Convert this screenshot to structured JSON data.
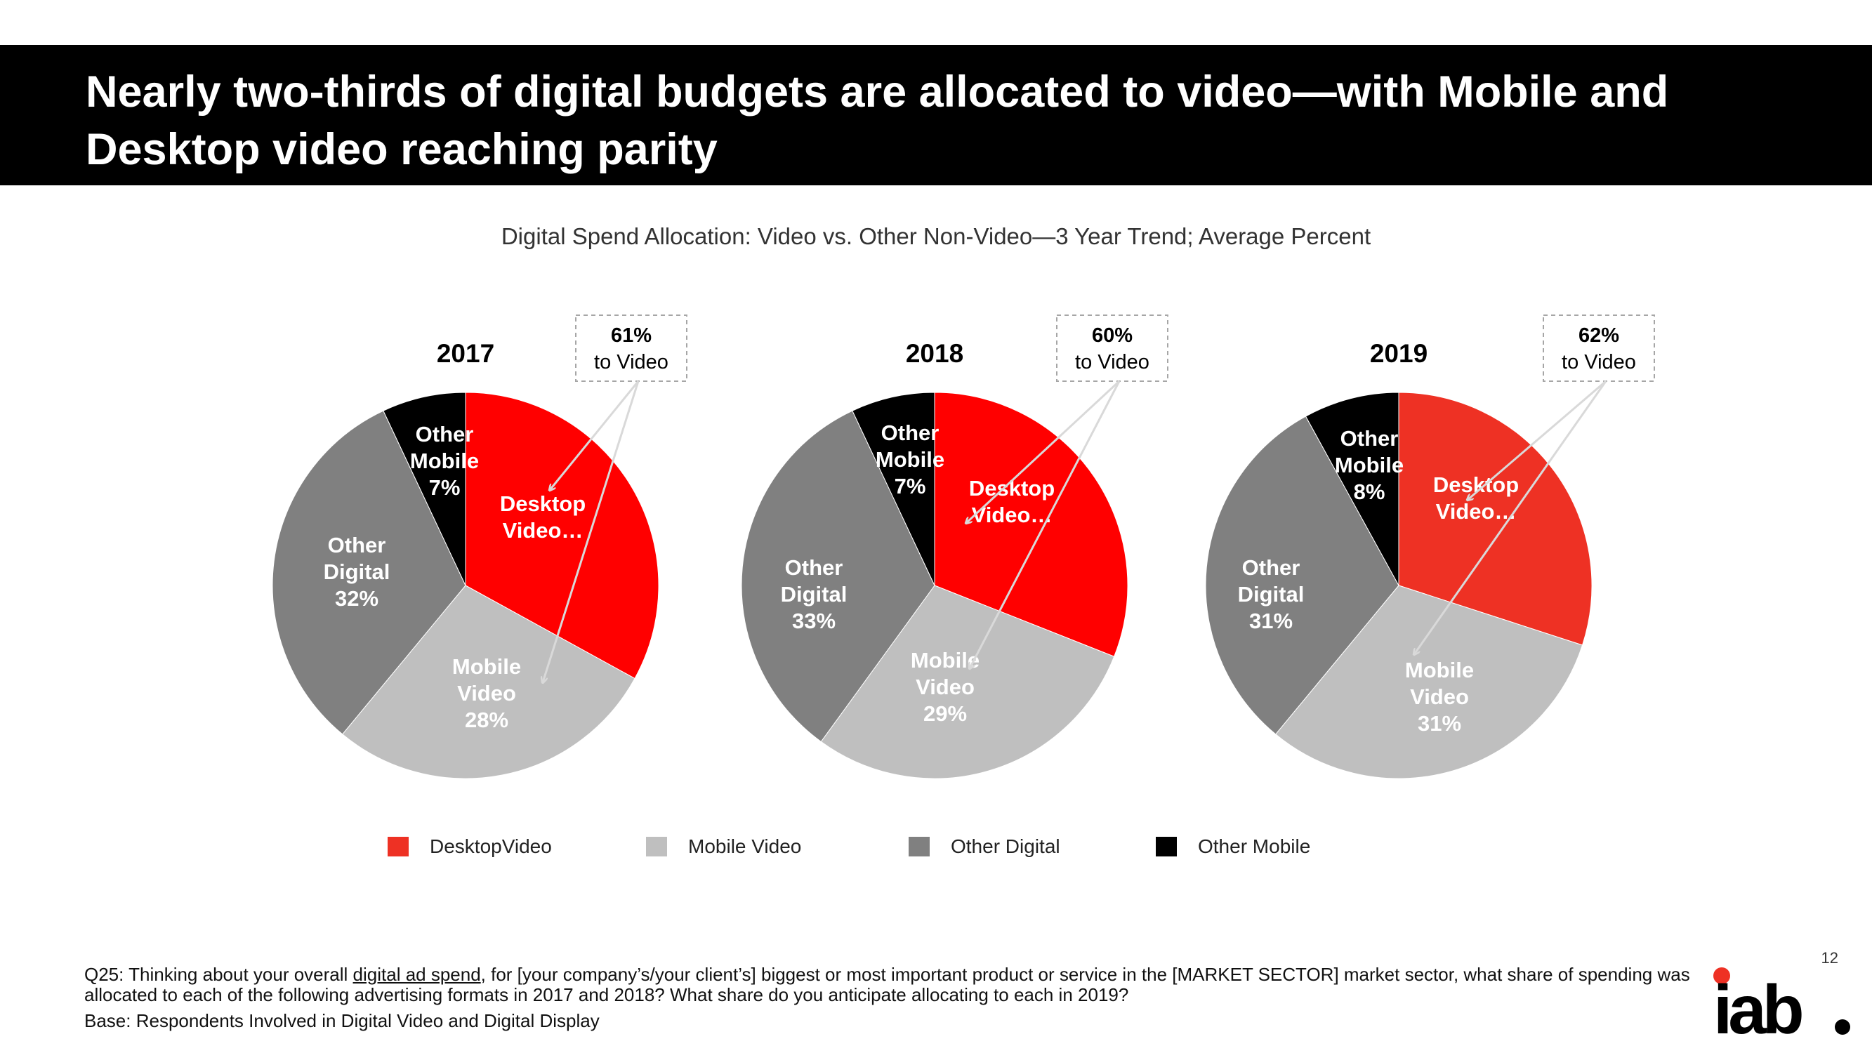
{
  "header": {
    "title": "Nearly two-thirds of digital budgets are allocated to video—with Mobile and Desktop video reaching parity"
  },
  "subtitle": "Digital Spend Allocation:  Video vs. Other Non-Video—3 Year Trend; Average Percent",
  "chart_data": [
    {
      "type": "pie",
      "title": "2017",
      "callout": {
        "value": "61%",
        "label": "to Video"
      },
      "slices": [
        {
          "name": "Desktop Video",
          "label_lines": [
            "Desktop",
            "Video…"
          ],
          "value": 33,
          "color": "#ff0000"
        },
        {
          "name": "Mobile Video",
          "label_lines": [
            "Mobile",
            "Video",
            "28%"
          ],
          "value": 28,
          "color": "#bfbfbf"
        },
        {
          "name": "Other Digital",
          "label_lines": [
            "Other",
            "Digital",
            "32%"
          ],
          "value": 32,
          "color": "#808080"
        },
        {
          "name": "Other Mobile",
          "label_lines": [
            "Other",
            "Mobile",
            "7%"
          ],
          "value": 7,
          "color": "#000000"
        }
      ]
    },
    {
      "type": "pie",
      "title": "2018",
      "callout": {
        "value": "60%",
        "label": "to Video"
      },
      "slices": [
        {
          "name": "Desktop Video",
          "label_lines": [
            "Desktop",
            "Video…"
          ],
          "value": 31,
          "color": "#ff0000"
        },
        {
          "name": "Mobile Video",
          "label_lines": [
            "Mobile",
            "Video",
            "29%"
          ],
          "value": 29,
          "color": "#bfbfbf"
        },
        {
          "name": "Other Digital",
          "label_lines": [
            "Other",
            "Digital",
            "33%"
          ],
          "value": 33,
          "color": "#808080"
        },
        {
          "name": "Other Mobile",
          "label_lines": [
            "Other",
            "Mobile",
            "7%"
          ],
          "value": 7,
          "color": "#000000"
        }
      ]
    },
    {
      "type": "pie",
      "title": "2019",
      "callout": {
        "value": "62%",
        "label": "to Video"
      },
      "slices": [
        {
          "name": "Desktop Video",
          "label_lines": [
            "Desktop",
            "Video…"
          ],
          "value": 30,
          "color": "#ee3124"
        },
        {
          "name": "Mobile Video",
          "label_lines": [
            "Mobile",
            "Video",
            "31%"
          ],
          "value": 31,
          "color": "#bfbfbf"
        },
        {
          "name": "Other Digital",
          "label_lines": [
            "Other",
            "Digital",
            "31%"
          ],
          "value": 31,
          "color": "#808080"
        },
        {
          "name": "Other Mobile",
          "label_lines": [
            "Other",
            "Mobile",
            "8%"
          ],
          "value": 8,
          "color": "#000000"
        }
      ]
    }
  ],
  "legend": [
    {
      "label": "DesktopVideo",
      "color": "#ee3124"
    },
    {
      "label": "Mobile Video",
      "color": "#bfbfbf"
    },
    {
      "label": "Other Digital",
      "color": "#808080"
    },
    {
      "label": "Other Mobile",
      "color": "#000000"
    }
  ],
  "footnote": {
    "question_prefix": "Q25: Thinking about your overall ",
    "question_underlined": "digital ad spend",
    "question_suffix": ", for [your company’s/your client’s] biggest or most important product or service in the [MARKET SECTOR] market sector, what share of spending was allocated to each of the following advertising formats in 2017 and 2018?  What share do you anticipate allocating to each in 2019?",
    "base": "Base:  Respondents Involved in Digital Video and Digital Display"
  },
  "page_number": "12",
  "logo": {
    "text": "iab",
    "accent_color": "#ee3124"
  }
}
